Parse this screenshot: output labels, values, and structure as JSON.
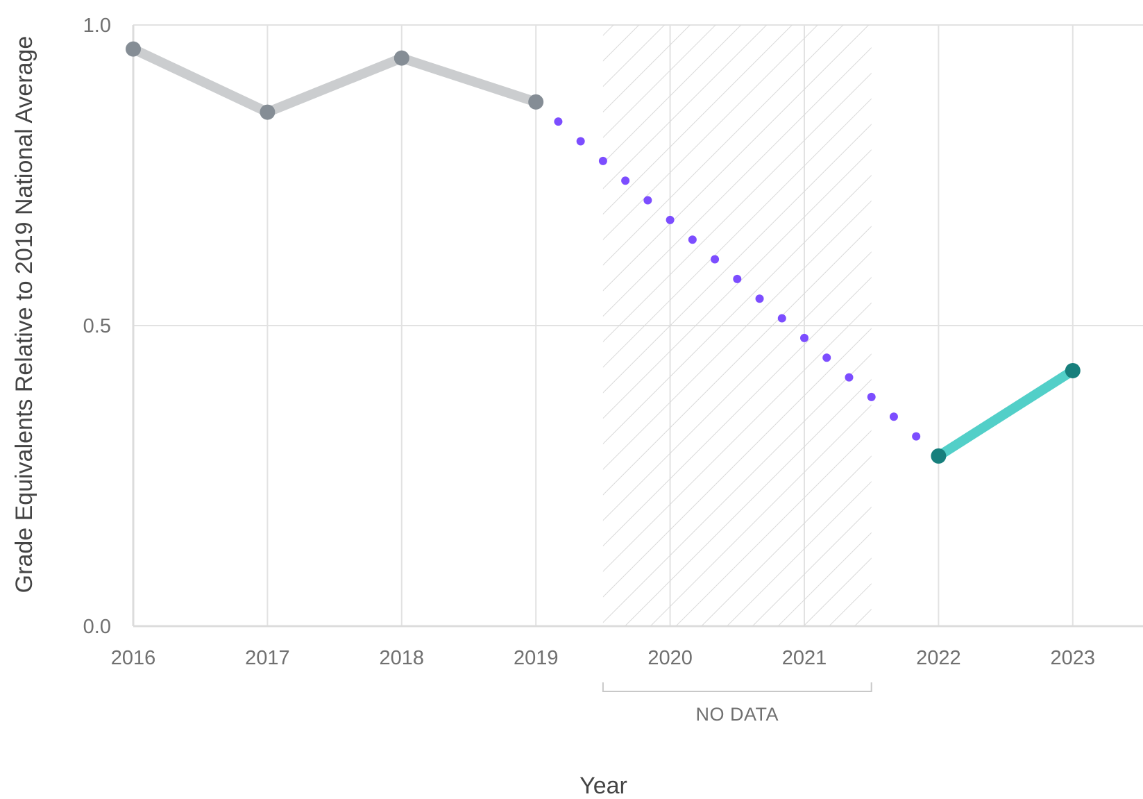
{
  "chart_data": {
    "type": "line",
    "title": "",
    "xlabel": "Year",
    "ylabel": "Grade Equivalents Relative to 2019 National Average",
    "x": [
      2016,
      2017,
      2018,
      2019,
      2020,
      2021,
      2022,
      2023
    ],
    "xlim": [
      2016,
      2023.5
    ],
    "ylim": [
      0.0,
      1.0
    ],
    "x_ticks": [
      "2016",
      "2017",
      "2018",
      "2019",
      "2020",
      "2021",
      "2022",
      "2023"
    ],
    "y_ticks": [
      "0.0",
      "0.5",
      "1.0"
    ],
    "grid": true,
    "series": [
      {
        "x": [
          2016,
          2017,
          2018,
          2019
        ],
        "values": [
          0.96,
          0.855,
          0.945,
          0.872
        ],
        "color": "#cbcdcf",
        "marker_color": "#858d95",
        "style": "solid"
      },
      {
        "x": [
          2019,
          2022
        ],
        "values": [
          0.872,
          0.283
        ],
        "color": "#7c4dff",
        "style": "dotted"
      },
      {
        "x": [
          2022,
          2023
        ],
        "values": [
          0.283,
          0.425
        ],
        "color": "#52cfc8",
        "marker_color": "#177f7c",
        "style": "solid"
      }
    ],
    "no_data_band": {
      "x_range": [
        2019.5,
        2021.5
      ],
      "label": "NO DATA"
    }
  }
}
